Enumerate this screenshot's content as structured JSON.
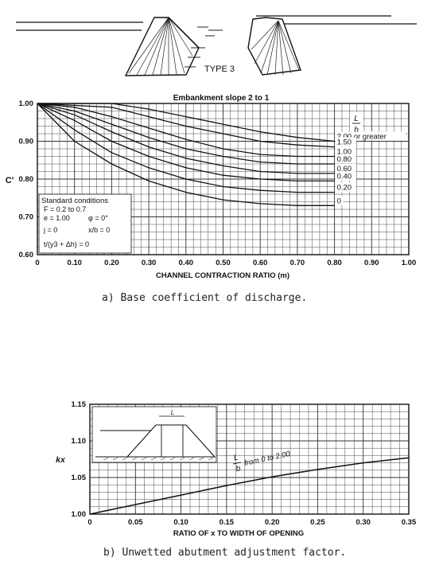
{
  "type_label": "TYPE 3",
  "captions": {
    "a": "a) Base coefficient of discharge.",
    "b": "b) Unwetted abutment adjustment factor."
  },
  "chart_data": [
    {
      "type": "line",
      "title": "Embankment slope 2 to 1",
      "xlabel": "CHANNEL CONTRACTION RATIO (m)",
      "ylabel": "C'",
      "xlim": [
        0,
        1.0
      ],
      "ylim": [
        0.6,
        1.0
      ],
      "x_ticks": [
        "0",
        "0.10",
        "0.20",
        "0.30",
        "0.40",
        "0.50",
        "0.60",
        "0.70",
        "0.80",
        "0.90",
        "1.00"
      ],
      "y_ticks": [
        "0.60",
        "0.70",
        "0.80",
        "0.90",
        "1.00"
      ],
      "grid": true,
      "legend_header": "L/b",
      "standard_conditions": {
        "title": "Standard conditions",
        "lines": [
          "F = 0.2 to 0.7",
          "e = 1.00",
          "φ = 0°",
          "j = 0",
          "x/b = 0",
          "t/(y3 + Δh) = 0"
        ]
      },
      "series": [
        {
          "name": "2.00 or greater",
          "x": [
            0,
            0.2,
            0.3,
            0.4,
            0.5,
            0.6,
            0.7,
            0.8
          ],
          "y": [
            1.0,
            1.0,
            0.985,
            0.965,
            0.945,
            0.925,
            0.91,
            0.9
          ]
        },
        {
          "name": "1.50",
          "x": [
            0,
            0.2,
            0.3,
            0.4,
            0.5,
            0.6,
            0.7,
            0.8
          ],
          "y": [
            1.0,
            0.99,
            0.965,
            0.94,
            0.92,
            0.9,
            0.89,
            0.885
          ]
        },
        {
          "name": "1.00",
          "x": [
            0,
            0.1,
            0.2,
            0.3,
            0.4,
            0.5,
            0.6,
            0.7,
            0.8
          ],
          "y": [
            1.0,
            0.99,
            0.965,
            0.935,
            0.905,
            0.88,
            0.865,
            0.86,
            0.86
          ]
        },
        {
          "name": "0.80",
          "x": [
            0,
            0.1,
            0.2,
            0.3,
            0.4,
            0.5,
            0.6,
            0.7,
            0.8
          ],
          "y": [
            1.0,
            0.98,
            0.945,
            0.91,
            0.88,
            0.86,
            0.845,
            0.84,
            0.84
          ]
        },
        {
          "name": "0.60",
          "x": [
            0,
            0.1,
            0.2,
            0.3,
            0.4,
            0.5,
            0.6,
            0.7,
            0.8
          ],
          "y": [
            1.0,
            0.97,
            0.925,
            0.885,
            0.855,
            0.835,
            0.82,
            0.815,
            0.815
          ]
        },
        {
          "name": "0.40",
          "x": [
            0,
            0.1,
            0.2,
            0.3,
            0.4,
            0.5,
            0.6,
            0.7,
            0.8
          ],
          "y": [
            1.0,
            0.955,
            0.9,
            0.86,
            0.83,
            0.81,
            0.8,
            0.795,
            0.795
          ]
        },
        {
          "name": "0.20",
          "x": [
            0,
            0.1,
            0.2,
            0.3,
            0.4,
            0.5,
            0.6,
            0.7,
            0.8
          ],
          "y": [
            1.0,
            0.93,
            0.87,
            0.83,
            0.8,
            0.78,
            0.77,
            0.765,
            0.765
          ]
        },
        {
          "name": "0",
          "x": [
            0,
            0.1,
            0.2,
            0.3,
            0.4,
            0.5,
            0.6,
            0.7,
            0.8
          ],
          "y": [
            1.0,
            0.9,
            0.84,
            0.795,
            0.765,
            0.745,
            0.735,
            0.73,
            0.73
          ]
        }
      ]
    },
    {
      "type": "line",
      "title": "",
      "xlabel": "RATIO OF x TO WIDTH OF OPENING",
      "ylabel": "kx",
      "xlim": [
        0,
        0.35
      ],
      "ylim": [
        1.0,
        1.15
      ],
      "x_ticks": [
        "0",
        "0.05",
        "0.10",
        "0.15",
        "0.20",
        "0.25",
        "0.30",
        "0.35"
      ],
      "y_ticks": [
        "1.00",
        "1.05",
        "1.10",
        "1.15"
      ],
      "grid": true,
      "annotation": "L/b from 0 to 2.00",
      "inset_label": "L",
      "series": [
        {
          "name": "",
          "x": [
            0,
            0.05,
            0.1,
            0.15,
            0.2,
            0.25,
            0.3,
            0.35
          ],
          "y": [
            1.0,
            1.013,
            1.026,
            1.039,
            1.051,
            1.061,
            1.07,
            1.077
          ]
        }
      ]
    }
  ]
}
